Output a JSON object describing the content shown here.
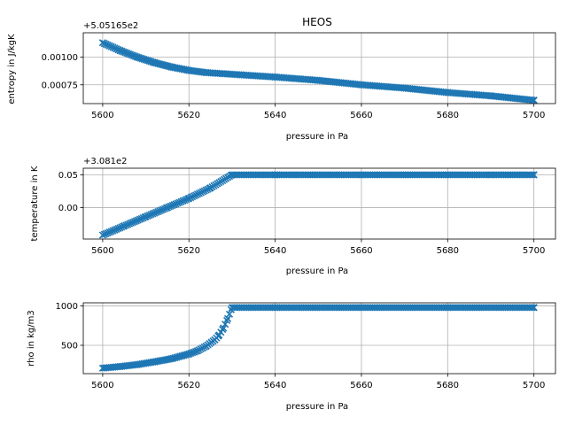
{
  "chart_data": [
    {
      "type": "scatter",
      "title": "HEOS",
      "xlabel": "pressure in Pa",
      "ylabel": "entropy in J/kgK",
      "offset_text": "+5.05165e2",
      "xlim": [
        5595.5,
        5705.0
      ],
      "ylim": [
        0.00058,
        0.00122
      ],
      "xticks": [
        5600,
        5620,
        5640,
        5660,
        5680,
        5700
      ],
      "yticks": [
        0.00075,
        0.001
      ],
      "ytick_labels": [
        "0.00075",
        "0.00100"
      ],
      "grid": true,
      "marker": "x",
      "color": "#1f77b4",
      "x": [
        5600,
        5604,
        5608,
        5612,
        5616,
        5620,
        5624,
        5628,
        5632,
        5640,
        5650,
        5660,
        5670,
        5680,
        5690,
        5700
      ],
      "y": [
        0.00113,
        0.00106,
        0.001,
        0.00095,
        0.00091,
        0.00088,
        0.00086,
        0.00085,
        0.00084,
        0.00082,
        0.00079,
        0.00075,
        0.00072,
        0.00068,
        0.00065,
        0.00061
      ]
    },
    {
      "type": "scatter",
      "title": "",
      "xlabel": "pressure in Pa",
      "ylabel": "temperature in K",
      "offset_text": "+3.081e2",
      "xlim": [
        5595.5,
        5705.0
      ],
      "ylim": [
        -0.048,
        0.06
      ],
      "xticks": [
        5600,
        5620,
        5640,
        5660,
        5680,
        5700
      ],
      "yticks": [
        0.0,
        0.05
      ],
      "ytick_labels": [
        "0.00",
        "0.05"
      ],
      "grid": true,
      "marker": "x",
      "color": "#1f77b4",
      "x": [
        5600,
        5605,
        5610,
        5615,
        5620,
        5625,
        5630,
        5640,
        5650,
        5660,
        5670,
        5680,
        5690,
        5700
      ],
      "y": [
        -0.042,
        -0.028,
        -0.014,
        0.0,
        0.014,
        0.03,
        0.05,
        0.05,
        0.05,
        0.05,
        0.05,
        0.05,
        0.05,
        0.05
      ]
    },
    {
      "type": "scatter",
      "title": "",
      "xlabel": "pressure in Pa",
      "ylabel": "rho in kg/m3",
      "offset_text": "",
      "xlim": [
        5595.5,
        5705.0
      ],
      "ylim": [
        140,
        1040
      ],
      "xticks": [
        5600,
        5620,
        5640,
        5660,
        5680,
        5700
      ],
      "yticks": [
        500,
        1000
      ],
      "ytick_labels": [
        "500",
        "1000"
      ],
      "grid": true,
      "marker": "x",
      "color": "#1f77b4",
      "x": [
        5600,
        5604,
        5608,
        5612,
        5616,
        5620,
        5622,
        5624,
        5626,
        5627,
        5628,
        5629,
        5630,
        5640,
        5660,
        5680,
        5700
      ],
      "y": [
        210,
        230,
        255,
        290,
        330,
        390,
        430,
        490,
        570,
        630,
        720,
        840,
        980,
        980,
        980,
        980,
        980
      ]
    }
  ]
}
